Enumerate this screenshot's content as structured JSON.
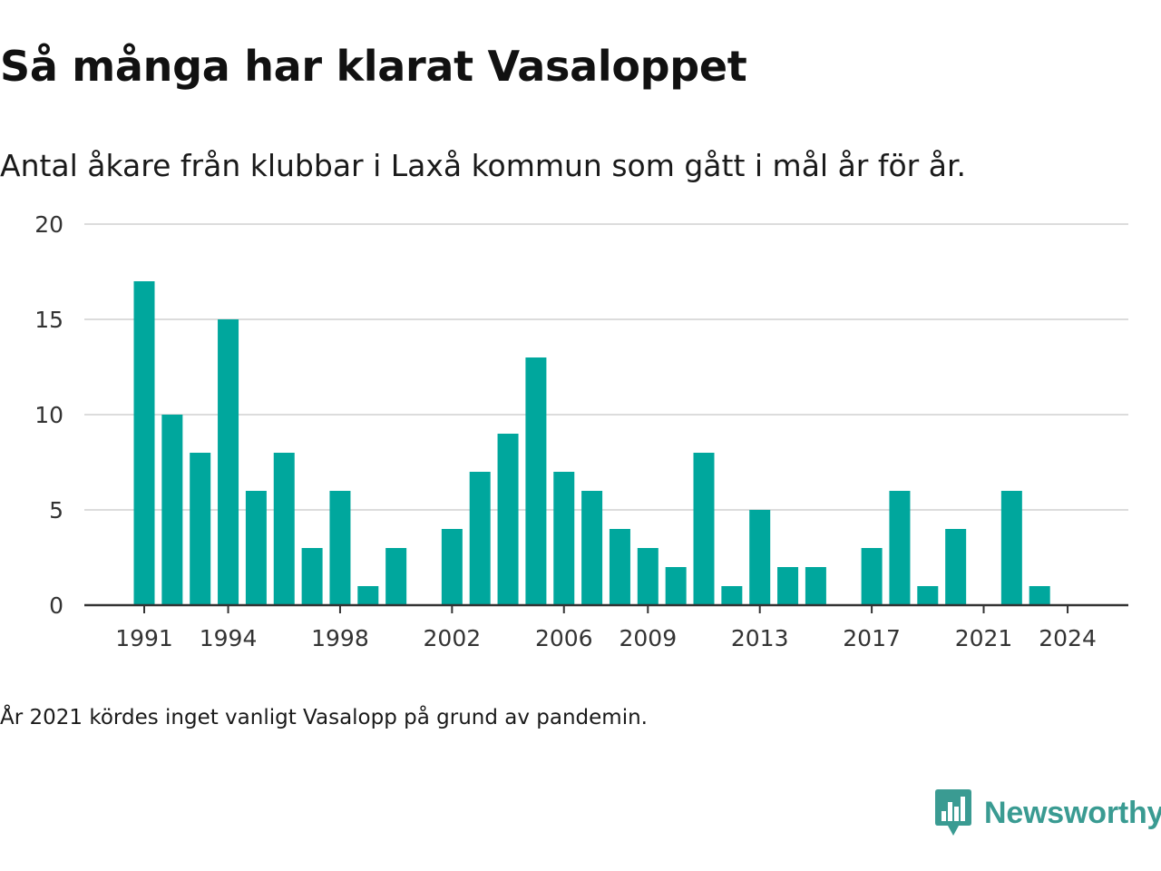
{
  "title": "Så många har klarat Vasaloppet",
  "subtitle": "Antal åkare från klubbar i Laxå kommun som gått i mål år för år.",
  "footnote": "År 2021 kördes inget vanligt Vasalopp på grund av pandemin.",
  "brand": {
    "name": "Newsworthy",
    "icon": "newsworthy-logo-icon",
    "color": "#3a9b92"
  },
  "chart_data": {
    "type": "bar",
    "bar_color": "#00a79d",
    "years": [
      1991,
      1992,
      1993,
      1994,
      1995,
      1996,
      1997,
      1998,
      1999,
      2000,
      2001,
      2002,
      2003,
      2004,
      2005,
      2006,
      2007,
      2008,
      2009,
      2010,
      2011,
      2012,
      2013,
      2014,
      2015,
      2016,
      2017,
      2018,
      2019,
      2020,
      2021,
      2022,
      2023,
      2024
    ],
    "values": [
      17,
      10,
      8,
      15,
      6,
      8,
      3,
      6,
      1,
      3,
      0,
      4,
      7,
      9,
      13,
      7,
      6,
      4,
      3,
      2,
      8,
      1,
      5,
      2,
      2,
      0,
      3,
      6,
      1,
      4,
      0,
      6,
      1,
      0
    ],
    "x_tick_labels": [
      "1991",
      "1994",
      "1998",
      "2002",
      "2006",
      "2009",
      "2013",
      "2017",
      "2021",
      "2024"
    ],
    "y_ticks": [
      0,
      5,
      10,
      15,
      20
    ],
    "ylim": [
      0,
      20
    ],
    "grid": true,
    "legend": false
  }
}
